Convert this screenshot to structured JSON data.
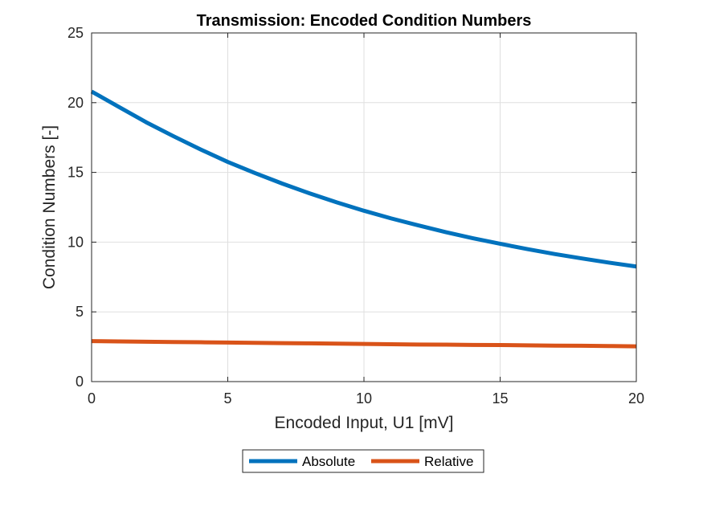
{
  "chart_data": {
    "type": "line",
    "title": "Transmission: Encoded Condition Numbers",
    "xlabel": "Encoded Input, U1 [mV]",
    "ylabel": "Condition Numbers [-]",
    "xlim": [
      0,
      20
    ],
    "ylim": [
      0,
      25
    ],
    "xticks": [
      0,
      5,
      10,
      15,
      20
    ],
    "yticks": [
      0,
      5,
      10,
      15,
      20,
      25
    ],
    "grid": true,
    "legend_position": "bottom-outside-center",
    "x": [
      0,
      1,
      2,
      3,
      4,
      5,
      6,
      7,
      8,
      9,
      10,
      11,
      12,
      13,
      14,
      15,
      16,
      17,
      18,
      19,
      20
    ],
    "series": [
      {
        "name": "Absolute",
        "color": "#0072BD",
        "values": [
          20.8,
          19.7,
          18.6,
          17.6,
          16.65,
          15.75,
          14.95,
          14.2,
          13.5,
          12.85,
          12.25,
          11.7,
          11.2,
          10.72,
          10.28,
          9.88,
          9.5,
          9.15,
          8.83,
          8.53,
          8.25
        ]
      },
      {
        "name": "Relative",
        "color": "#D95319",
        "values": [
          2.9,
          2.88,
          2.86,
          2.84,
          2.82,
          2.8,
          2.78,
          2.76,
          2.74,
          2.72,
          2.7,
          2.68,
          2.66,
          2.65,
          2.63,
          2.62,
          2.6,
          2.58,
          2.57,
          2.55,
          2.53
        ]
      }
    ]
  }
}
